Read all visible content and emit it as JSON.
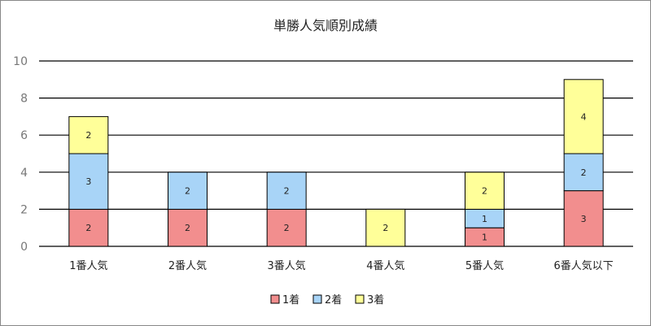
{
  "chart_data": {
    "type": "bar",
    "stacked": true,
    "title": "単勝人気順別成績",
    "categories": [
      "1番人気",
      "2番人気",
      "3番人気",
      "4番人気",
      "5番人気",
      "6番人気以下"
    ],
    "series": [
      {
        "name": "1着",
        "values": [
          2,
          2,
          2,
          0,
          1,
          3
        ],
        "color": "#f28e8e"
      },
      {
        "name": "2着",
        "values": [
          3,
          2,
          2,
          0,
          1,
          2
        ],
        "color": "#a8d4f7"
      },
      {
        "name": "3着",
        "values": [
          2,
          0,
          0,
          2,
          2,
          4
        ],
        "color": "#ffff99"
      }
    ],
    "ylim": [
      0,
      10
    ],
    "yticks": [
      0,
      2,
      4,
      6,
      8,
      10
    ],
    "grid": true,
    "legend_position": "bottom"
  }
}
